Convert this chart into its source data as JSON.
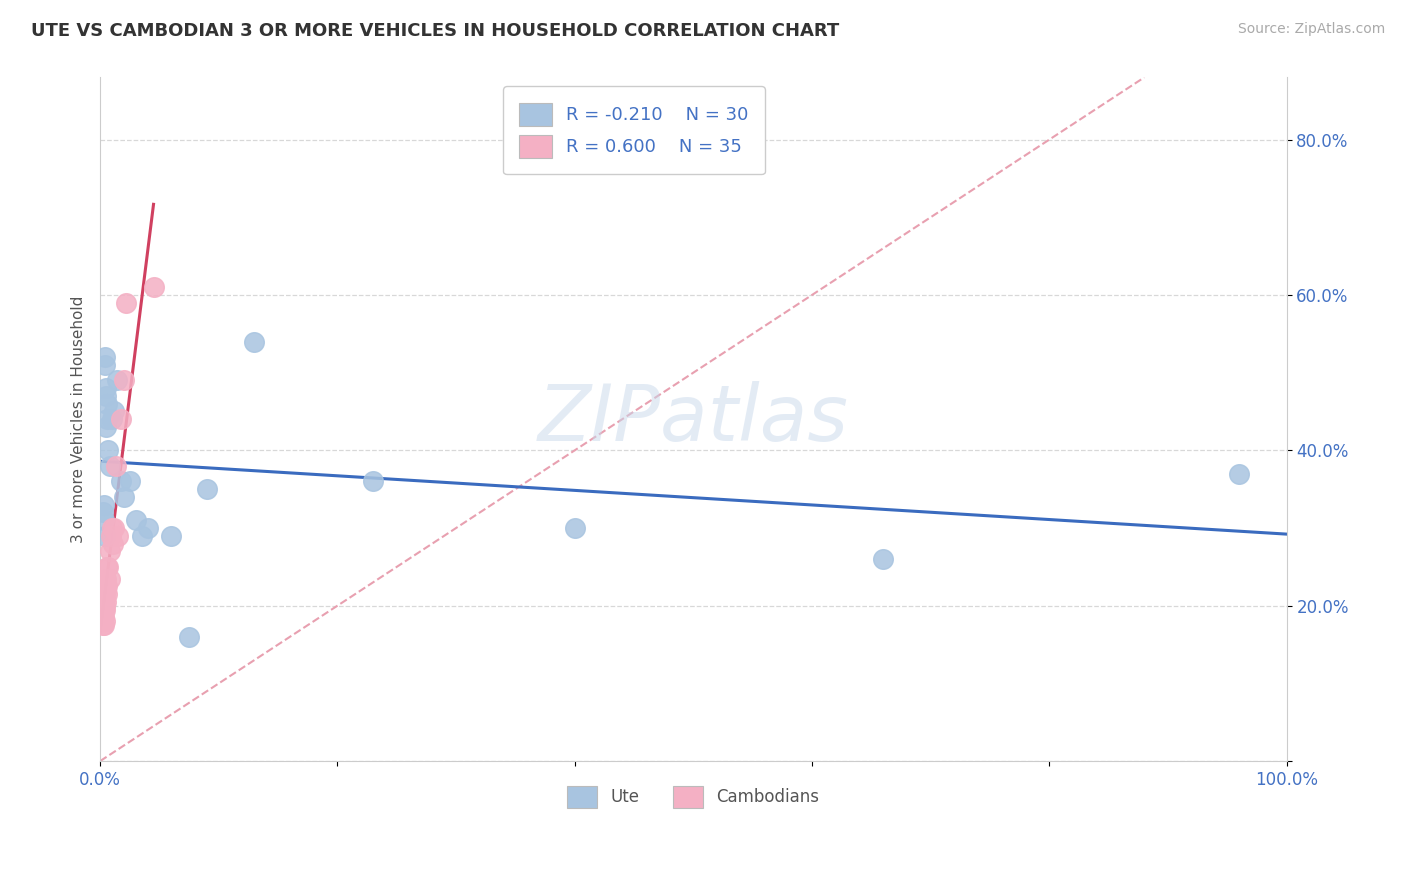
{
  "title": "UTE VS CAMBODIAN 3 OR MORE VEHICLES IN HOUSEHOLD CORRELATION CHART",
  "source": "Source: ZipAtlas.com",
  "ylabel": "3 or more Vehicles in Household",
  "watermark": "ZIPatlas",
  "legend_r1": "R = -0.210",
  "legend_n1": "N = 30",
  "legend_r2": "R = 0.600",
  "legend_n2": "N = 35",
  "legend_label1": "Ute",
  "legend_label2": "Cambodians",
  "ute_color": "#a8c4e0",
  "cam_color": "#f4b0c4",
  "ute_line_color": "#3a6bbf",
  "cam_line_color": "#d04060",
  "diag_line_color": "#e8a0b0",
  "text_color": "#4472c4",
  "grid_color": "#d8d8d8",
  "ute_x": [
    0.002,
    0.003,
    0.003,
    0.004,
    0.004,
    0.004,
    0.005,
    0.005,
    0.005,
    0.006,
    0.006,
    0.007,
    0.008,
    0.01,
    0.012,
    0.014,
    0.018,
    0.02,
    0.025,
    0.03,
    0.035,
    0.04,
    0.06,
    0.075,
    0.09,
    0.13,
    0.23,
    0.4,
    0.66,
    0.96
  ],
  "ute_y": [
    0.32,
    0.31,
    0.33,
    0.29,
    0.51,
    0.52,
    0.47,
    0.48,
    0.43,
    0.44,
    0.46,
    0.4,
    0.38,
    0.44,
    0.45,
    0.49,
    0.36,
    0.34,
    0.36,
    0.31,
    0.29,
    0.3,
    0.29,
    0.16,
    0.35,
    0.54,
    0.36,
    0.3,
    0.26,
    0.37
  ],
  "cam_x": [
    0.002,
    0.002,
    0.002,
    0.003,
    0.003,
    0.003,
    0.003,
    0.003,
    0.004,
    0.004,
    0.004,
    0.004,
    0.004,
    0.004,
    0.004,
    0.005,
    0.005,
    0.005,
    0.005,
    0.006,
    0.006,
    0.006,
    0.007,
    0.008,
    0.008,
    0.009,
    0.01,
    0.011,
    0.012,
    0.013,
    0.015,
    0.018,
    0.02,
    0.022,
    0.045
  ],
  "cam_y": [
    0.175,
    0.195,
    0.195,
    0.175,
    0.185,
    0.195,
    0.21,
    0.22,
    0.18,
    0.195,
    0.2,
    0.21,
    0.22,
    0.225,
    0.23,
    0.205,
    0.22,
    0.225,
    0.235,
    0.215,
    0.225,
    0.25,
    0.25,
    0.235,
    0.27,
    0.29,
    0.3,
    0.28,
    0.3,
    0.38,
    0.29,
    0.44,
    0.49,
    0.59,
    0.61
  ],
  "xlim": [
    0.0,
    1.0
  ],
  "ylim": [
    0.0,
    0.88
  ],
  "xtick_positions": [
    0.0,
    0.2,
    0.4,
    0.6,
    0.8,
    1.0
  ],
  "xtick_labels": [
    "0.0%",
    "",
    "",
    "",
    "",
    "100.0%"
  ],
  "ytick_positions": [
    0.0,
    0.2,
    0.4,
    0.6,
    0.8
  ],
  "ytick_labels": [
    "",
    "20.0%",
    "40.0%",
    "60.0%",
    "80.0%"
  ]
}
